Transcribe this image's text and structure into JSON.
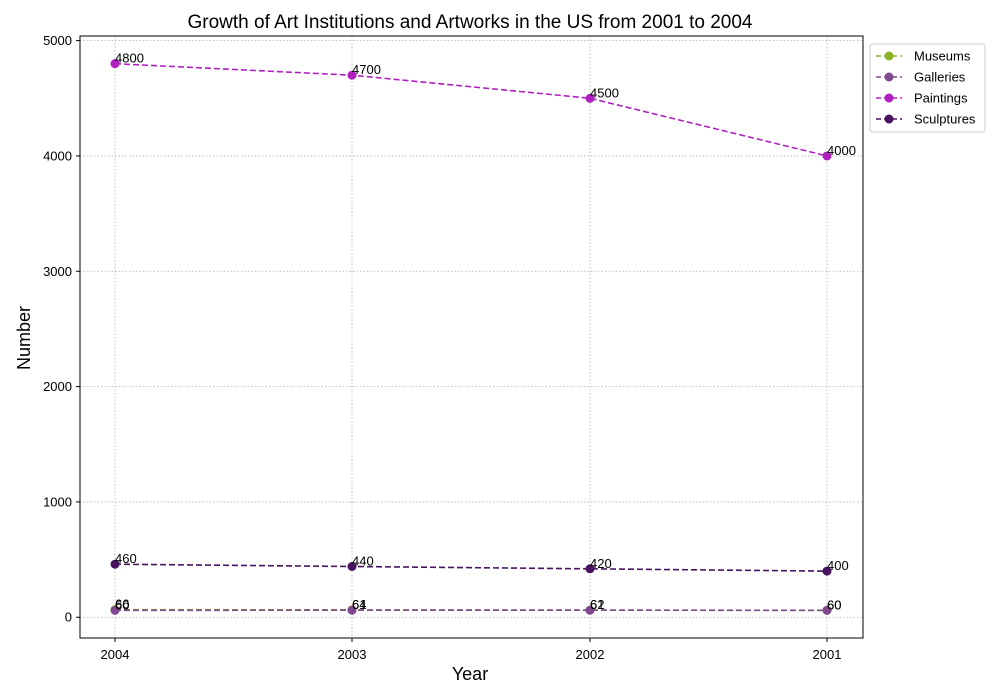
{
  "chart_data": {
    "type": "line",
    "title": "Growth of Art Institutions and Artworks in the US from 2001 to 2004",
    "xlabel": "Year",
    "ylabel": "Number",
    "x": [
      "2004",
      "2003",
      "2002",
      "2001"
    ],
    "ylim": [
      -180,
      5040
    ],
    "yticks": [
      0,
      1000,
      2000,
      3000,
      4000,
      5000
    ],
    "grid": true,
    "grid_style": "dotted",
    "line_style": "dashed",
    "markers": true,
    "legend_position": "outside-top-right",
    "series": [
      {
        "name": "Museums",
        "color": "#8ab328",
        "values": [
          66,
          64,
          62,
          60
        ]
      },
      {
        "name": "Galleries",
        "color": "#80498f",
        "values": [
          60,
          61,
          61,
          60
        ]
      },
      {
        "name": "Paintings",
        "color": "#b020c0",
        "values": [
          4800,
          4700,
          4500,
          4000
        ]
      },
      {
        "name": "Sculptures",
        "color": "#471360",
        "values": [
          460,
          440,
          420,
          400
        ]
      }
    ]
  }
}
